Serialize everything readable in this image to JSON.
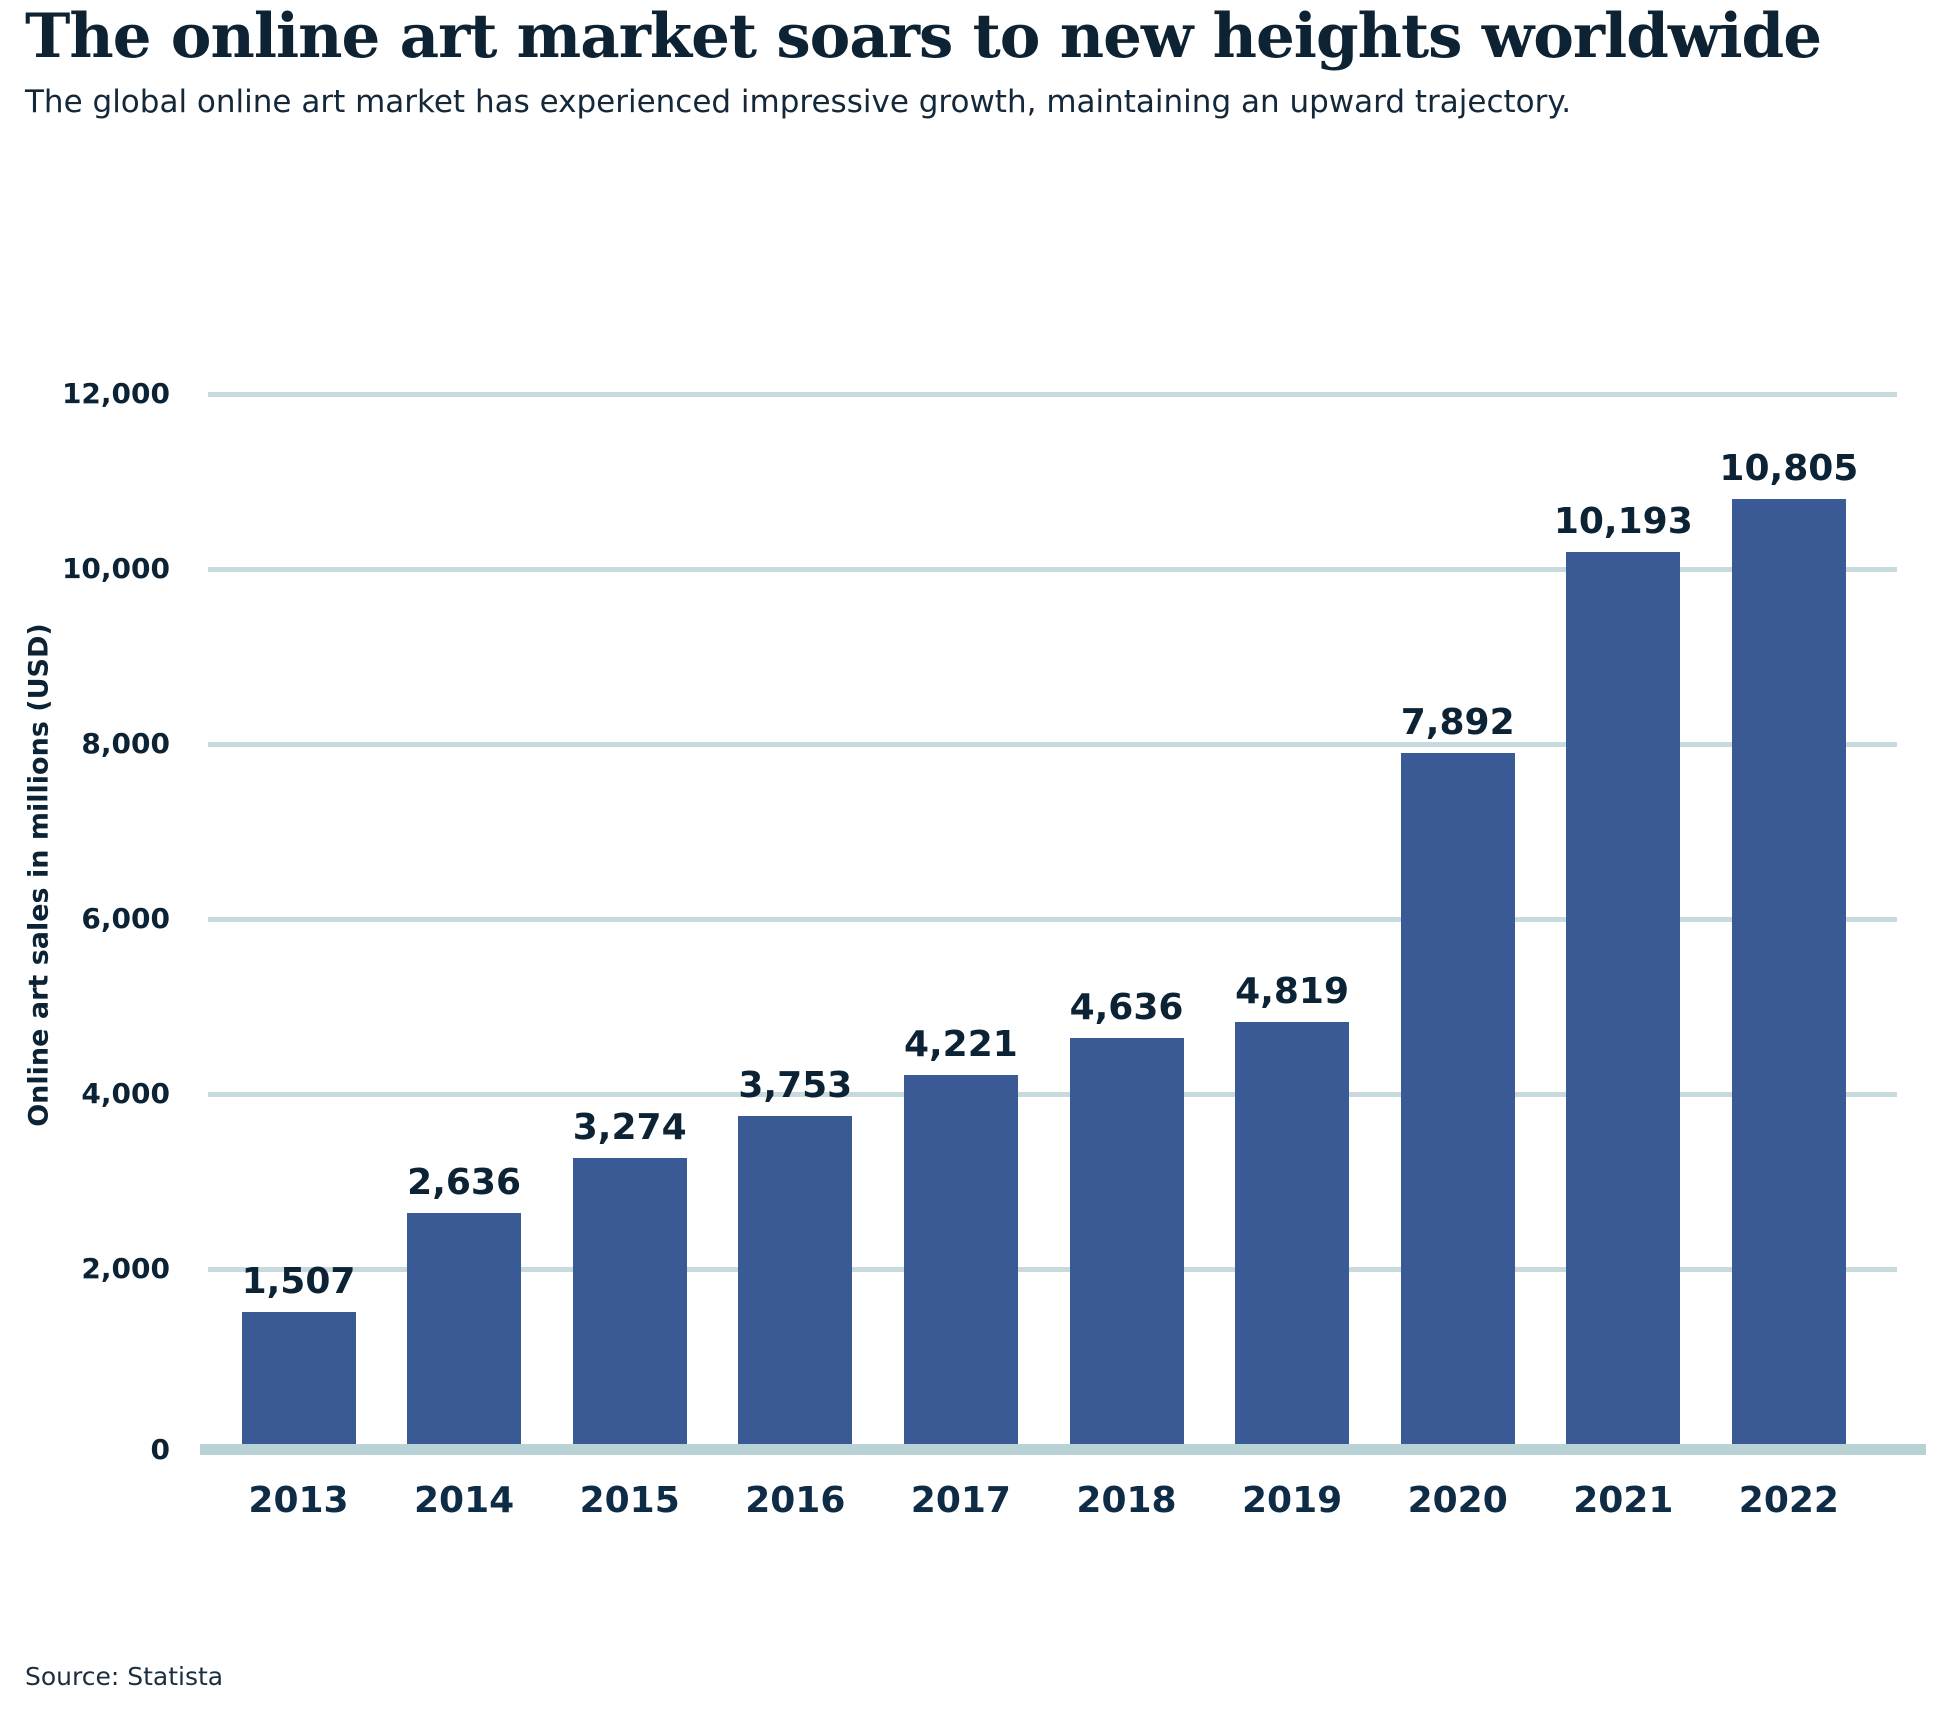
{
  "header": {
    "title": "The online art market soars to new heights worldwide",
    "subtitle": "The global online art market has experienced impressive growth, maintaining an upward trajectory."
  },
  "footer": {
    "source": "Source: Statista"
  },
  "colors": {
    "bar": "#3a5a96",
    "gridline": "#c8dadd",
    "baseline": "#b9d2d5",
    "title_text": "#0d2333",
    "chart_text": "#0c2335"
  },
  "chart_data": {
    "type": "bar",
    "title": "The online art market soars to new heights worldwide",
    "subtitle": "The global online art market has experienced impressive growth, maintaining an upward trajectory.",
    "categories": [
      "2013",
      "2014",
      "2015",
      "2016",
      "2017",
      "2018",
      "2019",
      "2020",
      "2021",
      "2022"
    ],
    "values": [
      1507,
      2636,
      3274,
      3753,
      4221,
      4636,
      4819,
      7892,
      10193,
      10805
    ],
    "value_labels": [
      "1,507",
      "2,636",
      "3,274",
      "3,753",
      "4,221",
      "4,636",
      "4,819",
      "7,892",
      "10,193",
      "10,805"
    ],
    "xlabel": "",
    "ylabel": "Online art sales in millions (USD)",
    "ylim": [
      0,
      12000
    ],
    "yticks": [
      {
        "value": 0,
        "label": "0"
      },
      {
        "value": 2000,
        "label": "2,000"
      },
      {
        "value": 4000,
        "label": "4,000"
      },
      {
        "value": 6000,
        "label": "6,000"
      },
      {
        "value": 8000,
        "label": "8,000"
      },
      {
        "value": 10000,
        "label": "10,000"
      },
      {
        "value": 12000,
        "label": "12,000"
      }
    ],
    "grid": "horizontal",
    "legend": "none",
    "source": "Source: Statista"
  }
}
